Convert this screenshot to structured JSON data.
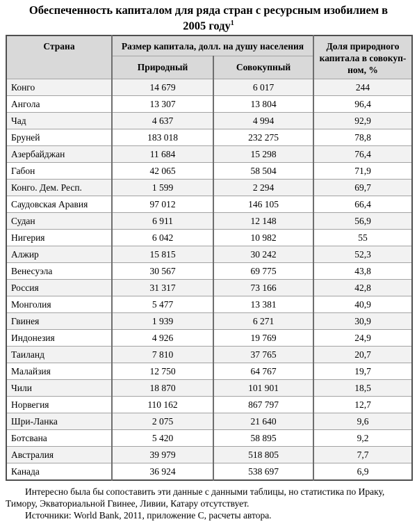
{
  "page": {
    "title_line1": "Обеспеченность капиталом для ряда стран с ресурсным изобилием в",
    "title_line2": "2005 году",
    "title_footnote_marker": "1"
  },
  "colors": {
    "header_bg": "#d9d9d9",
    "zebra_bg": "#f2f2f2",
    "border_outer": "#4f4f4f",
    "border_vertical": "#6e6e6e",
    "border_horizontal": "#a3a3a3"
  },
  "table": {
    "headers": {
      "country": "Страна",
      "capital_group": "Размер капитала, долл. на душу населения",
      "natural": "Природный",
      "total": "Совокупный",
      "share": "Доля природного капитала в совокуп-ном, %"
    },
    "rows": [
      {
        "country": "Конго",
        "natural": "14 679",
        "total": "6 017",
        "share": "244"
      },
      {
        "country": "Ангола",
        "natural": "13 307",
        "total": "13 804",
        "share": "96,4"
      },
      {
        "country": "Чад",
        "natural": "4 637",
        "total": "4 994",
        "share": "92,9"
      },
      {
        "country": "Бруней",
        "natural": "183 018",
        "total": "232 275",
        "share": "78,8"
      },
      {
        "country": "Азербайджан",
        "natural": "11 684",
        "total": "15 298",
        "share": "76,4"
      },
      {
        "country": "Габон",
        "natural": "42 065",
        "total": "58 504",
        "share": "71,9"
      },
      {
        "country": "Конго. Дем. Респ.",
        "natural": "1 599",
        "total": "2 294",
        "share": "69,7"
      },
      {
        "country": "Саудовская Аравия",
        "natural": "97 012",
        "total": "146 105",
        "share": "66,4"
      },
      {
        "country": "Судан",
        "natural": "6 911",
        "total": "12 148",
        "share": "56,9"
      },
      {
        "country": "Нигерия",
        "natural": "6 042",
        "total": "10 982",
        "share": "55"
      },
      {
        "country": "Алжир",
        "natural": "15 815",
        "total": "30 242",
        "share": "52,3"
      },
      {
        "country": "Венесуэла",
        "natural": "30 567",
        "total": "69 775",
        "share": "43,8"
      },
      {
        "country": "Россия",
        "natural": "31 317",
        "total": "73 166",
        "share": "42,8"
      },
      {
        "country": "Монголия",
        "natural": "5 477",
        "total": "13 381",
        "share": "40,9"
      },
      {
        "country": "Гвинея",
        "natural": "1 939",
        "total": "6 271",
        "share": "30,9"
      },
      {
        "country": "Индонезия",
        "natural": "4 926",
        "total": "19 769",
        "share": "24,9"
      },
      {
        "country": "Таиланд",
        "natural": "7 810",
        "total": "37 765",
        "share": "20,7"
      },
      {
        "country": "Малайзия",
        "natural": "12 750",
        "total": "64 767",
        "share": "19,7"
      },
      {
        "country": "Чили",
        "natural": "18 870",
        "total": "101 901",
        "share": "18,5"
      },
      {
        "country": "Норвегия",
        "natural": "110 162",
        "total": "867 797",
        "share": "12,7"
      },
      {
        "country": "Шри-Ланка",
        "natural": "2 075",
        "total": "21 640",
        "share": "9,6"
      },
      {
        "country": "Ботсвана",
        "natural": "5 420",
        "total": "58 895",
        "share": "9,2"
      },
      {
        "country": "Австралия",
        "natural": "39 979",
        "total": "518 805",
        "share": "7,7"
      },
      {
        "country": "Канада",
        "natural": "36 924",
        "total": "538 697",
        "share": "6,9"
      }
    ]
  },
  "notes": {
    "comment": "Интересно была бы сопоставить эти данные с данными таблицы, но статистика по Ираку, Тимору, Экваториальной Гвинее, Ливии, Катару отсутствует.",
    "sources": "Источники: World Bank, 2011, приложение С, расчеты автора."
  }
}
